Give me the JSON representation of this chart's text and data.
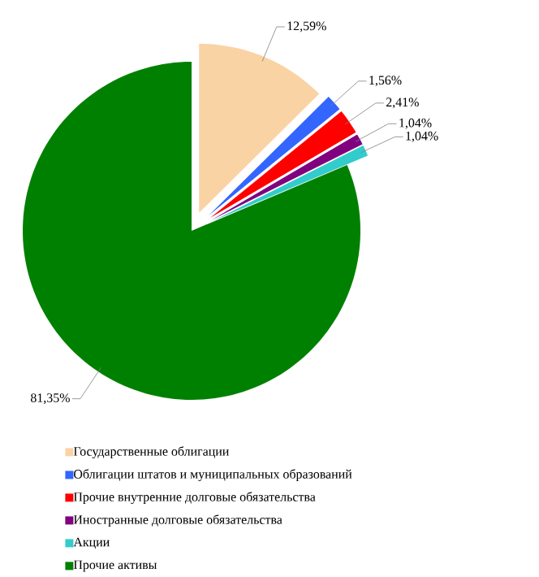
{
  "chart_data": {
    "type": "pie",
    "categories": [
      "Государственные облигации",
      "Облигации штатов и муниципальных образований",
      "Прочие внутренние долговые обязательства",
      "Иностранные долговые обязательства",
      "Акции",
      "Прочие активы"
    ],
    "values": [
      12.59,
      1.56,
      2.41,
      1.04,
      1.04,
      81.35
    ],
    "value_labels": [
      "12,59%",
      "1,56%",
      "2,41%",
      "1,04%",
      "1,04%",
      "81,35%"
    ],
    "colors": [
      "#fad3a4",
      "#3366ff",
      "#ff0000",
      "#800080",
      "#33cccc",
      "#008000"
    ],
    "legend": "bottom"
  }
}
